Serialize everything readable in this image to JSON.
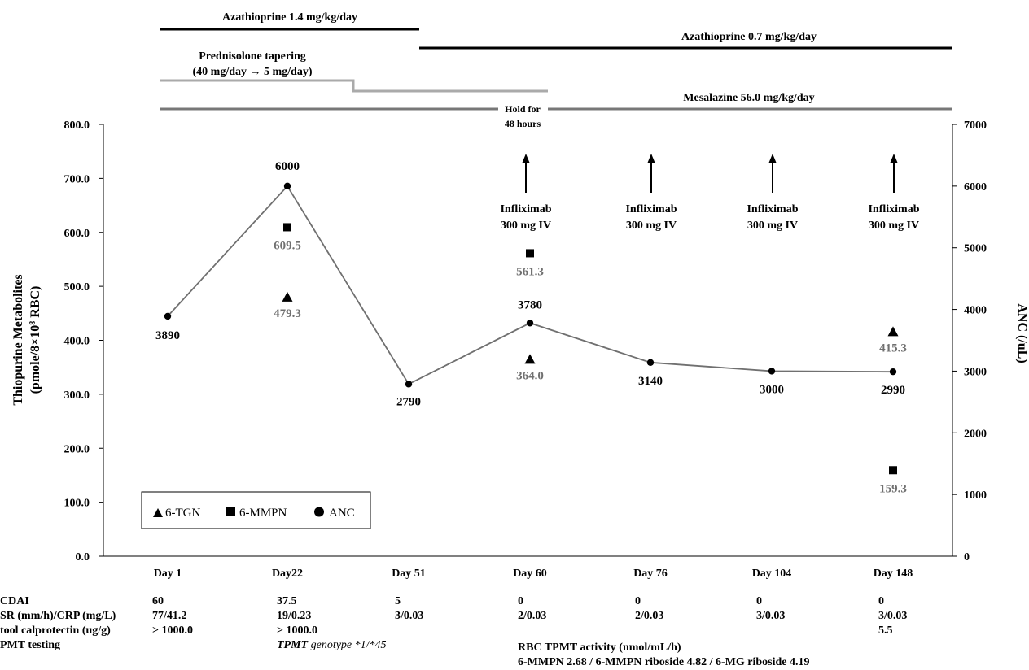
{
  "chart_data": {
    "type": "line",
    "categories": [
      "Day 1",
      "Day22",
      "Day 51",
      "Day 60",
      "Day 76",
      "Day 104",
      "Day 148"
    ],
    "y_left": {
      "label": "Thiopurine Metabolites",
      "label_line2": "(pmole/8×10",
      "label_sup": "8",
      "label_tail": " RBC)",
      "range": [
        0,
        800
      ],
      "ticks": [
        "0.0",
        "100.0",
        "200.0",
        "300.0",
        "400.0",
        "500.0",
        "600.0",
        "700.0",
        "800.0"
      ]
    },
    "y_right": {
      "label": "ANC (/uL)",
      "range": [
        0,
        7000
      ],
      "ticks": [
        "0",
        "1000",
        "2000",
        "3000",
        "4000",
        "5000",
        "6000",
        "7000"
      ]
    },
    "series": [
      {
        "name": "6-TGN",
        "marker": "triangle",
        "axis": "left",
        "values": [
          null,
          479.3,
          null,
          364.0,
          null,
          null,
          415.3
        ],
        "labels": [
          "",
          "479.3",
          "",
          "364.0",
          "",
          "",
          "415.3"
        ]
      },
      {
        "name": "6-MMPN",
        "marker": "square",
        "axis": "left",
        "values": [
          null,
          609.5,
          null,
          561.3,
          null,
          null,
          159.3
        ],
        "labels": [
          "",
          "609.5",
          "",
          "561.3",
          "",
          "",
          "159.3"
        ]
      },
      {
        "name": "ANC",
        "marker": "circle",
        "axis": "right",
        "values": [
          3890,
          6000,
          2790,
          3780,
          3140,
          3000,
          2990
        ],
        "labels": [
          "3890",
          "6000",
          "2790",
          "3780",
          "3140",
          "3000",
          "2990"
        ]
      }
    ],
    "legend": {
      "placement": "bottom-left",
      "entries": [
        "6-TGN",
        "6-MMPN",
        "ANC"
      ]
    },
    "colors": {
      "anc_line": "#707070",
      "metabolite_label": "#707070",
      "aza_bar": "#000000",
      "pred_bar": "#aaaaaa",
      "mesa_bar": "#777777"
    },
    "treatments": {
      "aza1": "Azathioprine 1.4 mg/kg/day",
      "aza2": "Azathioprine 0.7 mg/kg/day",
      "pred_line1": "Prednisolone tapering",
      "pred_line2": "(40 mg/day → 5 mg/day)",
      "mesa": "Mesalazine 56.0 mg/kg/day",
      "hold_line1": "Hold for",
      "hold_line2": "48 hours"
    },
    "infliximab": {
      "line1": "Infliximab",
      "line2": "300 mg IV",
      "days": [
        "Day 60",
        "Day 76",
        "Day 104",
        "Day 148"
      ]
    }
  },
  "table": {
    "row_labels": [
      "CDAI",
      "SR (mm/h)/CRP (mg/L)",
      "tool calprotectin (ug/g)",
      "PMT testing"
    ],
    "cdai": [
      "60",
      "37.5",
      "5",
      "0",
      "0",
      "0",
      "0"
    ],
    "esr_crp": [
      "77/41.2",
      "19/0.23",
      "3/0.03",
      "2/0.03",
      "2/0.03",
      "3/0.03",
      "3/0.03"
    ],
    "calprotectin": [
      "> 1000.0",
      "> 1000.0",
      "",
      "",
      "",
      "",
      "5.5"
    ],
    "tpmt_genotype_italic": "TPMT",
    "tpmt_genotype_rest": " genotype *1/*45",
    "rbc_tpmt_line1": "RBC TPMT activity (nmol/mL/h)",
    "rbc_tpmt_line2": "6-MMPN 2.68 / 6-MMPN riboside 4.82 / 6-MG  riboside 4.19"
  }
}
